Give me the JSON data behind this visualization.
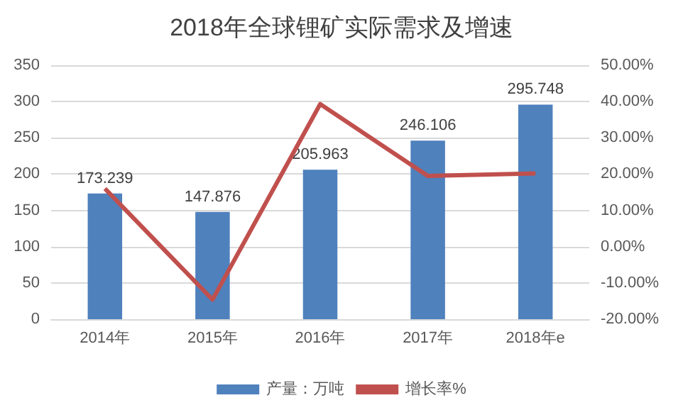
{
  "chart_data": {
    "type": "bar",
    "title": "2018年全球锂矿实际需求及增速",
    "categories": [
      "2014年",
      "2015年",
      "2016年",
      "2017年",
      "2018年e"
    ],
    "series": [
      {
        "name": "产量：万吨",
        "color": "#4f81bd",
        "values": [
          173.239,
          147.876,
          205.963,
          246.106,
          295.748
        ],
        "data_labels": true
      },
      {
        "name": "增长率%",
        "type": "line",
        "axis": "y2",
        "color": "#c0504d",
        "marker": "none",
        "values": [
          16,
          -14.6,
          39.3,
          19.5,
          20.2
        ]
      }
    ],
    "ylim": [
      0,
      350
    ],
    "yticks": [
      0,
      50,
      100,
      150,
      200,
      250,
      300,
      350
    ],
    "y2lim": [
      -20,
      50
    ],
    "y2ticks": [
      {
        "value": -20,
        "label": "-20.00%"
      },
      {
        "value": -10,
        "label": "-10.00%"
      },
      {
        "value": 0,
        "label": "0.00%"
      },
      {
        "value": 10,
        "label": "10.00%"
      },
      {
        "value": 20,
        "label": "20.00%"
      },
      {
        "value": 30,
        "label": "30.00%"
      },
      {
        "value": 40,
        "label": "40.00%"
      },
      {
        "value": 50,
        "label": "50.00%"
      }
    ],
    "grid": "y",
    "legend": "bottom"
  }
}
